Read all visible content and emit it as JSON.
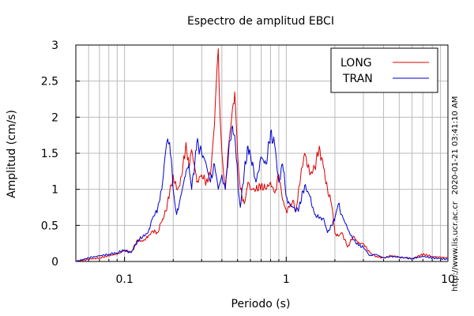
{
  "chart_data": {
    "type": "line",
    "title": "Espectro de amplitud EBCI",
    "xlabel": "Periodo (s)",
    "ylabel": "Amplitud (cm/s)",
    "xscale": "log",
    "xlim": [
      0.05,
      10
    ],
    "ylim": [
      0,
      3
    ],
    "x_tick_labels": [
      "0.1",
      "1",
      "10"
    ],
    "y_tick_labels": [
      "0",
      "0.5",
      "1",
      "1.5",
      "2",
      "2.5",
      "3"
    ],
    "grid": true,
    "legend_position": "top-right",
    "side_labels": [
      "2020-01-21 03:41:10 AM",
      "http://www.lis.ucr.ac.cr"
    ],
    "series": [
      {
        "name": "LONG",
        "color": "#dd0000",
        "x": [
          0.05,
          0.06,
          0.07,
          0.08,
          0.09,
          0.1,
          0.11,
          0.12,
          0.13,
          0.14,
          0.15,
          0.16,
          0.17,
          0.18,
          0.19,
          0.2,
          0.21,
          0.22,
          0.23,
          0.24,
          0.25,
          0.26,
          0.28,
          0.3,
          0.32,
          0.34,
          0.36,
          0.37,
          0.38,
          0.39,
          0.4,
          0.42,
          0.44,
          0.46,
          0.48,
          0.5,
          0.52,
          0.55,
          0.58,
          0.6,
          0.65,
          0.7,
          0.75,
          0.8,
          0.85,
          0.9,
          0.95,
          1.0,
          1.05,
          1.1,
          1.15,
          1.2,
          1.3,
          1.4,
          1.5,
          1.6,
          1.7,
          1.8,
          1.9,
          2.0,
          2.1,
          2.2,
          2.4,
          2.6,
          2.8,
          3.0,
          3.3,
          3.6,
          4.0,
          4.5,
          5.0,
          5.5,
          6.0,
          7.0,
          8.0,
          9.0,
          10.0
        ],
        "values": [
          0.0,
          0.03,
          0.05,
          0.08,
          0.1,
          0.15,
          0.13,
          0.3,
          0.28,
          0.35,
          0.42,
          0.4,
          0.55,
          0.7,
          0.95,
          1.2,
          1.0,
          1.05,
          1.35,
          1.65,
          1.3,
          1.55,
          1.1,
          1.2,
          1.1,
          1.2,
          1.9,
          2.5,
          2.95,
          2.0,
          1.5,
          1.0,
          1.6,
          2.0,
          2.35,
          1.5,
          1.0,
          0.8,
          1.1,
          1.0,
          1.0,
          1.05,
          1.0,
          1.1,
          0.95,
          1.2,
          0.85,
          0.7,
          0.75,
          0.85,
          0.7,
          1.05,
          1.5,
          1.2,
          1.3,
          1.6,
          1.3,
          1.0,
          0.8,
          0.4,
          0.35,
          0.4,
          0.2,
          0.35,
          0.25,
          0.25,
          0.12,
          0.07,
          0.05,
          0.08,
          0.06,
          0.05,
          0.04,
          0.1,
          0.07,
          0.06,
          0.05
        ]
      },
      {
        "name": "TRAN",
        "color": "#0000cc",
        "x": [
          0.05,
          0.06,
          0.07,
          0.08,
          0.09,
          0.1,
          0.11,
          0.12,
          0.13,
          0.14,
          0.15,
          0.16,
          0.17,
          0.18,
          0.185,
          0.19,
          0.2,
          0.21,
          0.22,
          0.23,
          0.24,
          0.25,
          0.26,
          0.28,
          0.3,
          0.32,
          0.34,
          0.36,
          0.38,
          0.4,
          0.42,
          0.44,
          0.46,
          0.48,
          0.5,
          0.52,
          0.55,
          0.58,
          0.6,
          0.65,
          0.7,
          0.75,
          0.8,
          0.85,
          0.9,
          0.95,
          1.0,
          1.05,
          1.1,
          1.15,
          1.2,
          1.3,
          1.4,
          1.5,
          1.6,
          1.7,
          1.8,
          1.9,
          2.0,
          2.1,
          2.2,
          2.4,
          2.6,
          2.8,
          3.0,
          3.3,
          3.6,
          4.0,
          4.5,
          5.0,
          5.5,
          6.0,
          7.0,
          8.0,
          9.0,
          10.0
        ],
        "values": [
          0.0,
          0.05,
          0.08,
          0.1,
          0.12,
          0.16,
          0.12,
          0.28,
          0.35,
          0.4,
          0.62,
          0.72,
          1.0,
          1.55,
          1.7,
          1.65,
          1.0,
          0.65,
          0.85,
          1.05,
          1.25,
          1.35,
          1.0,
          1.65,
          1.5,
          1.35,
          1.1,
          1.35,
          1.0,
          1.2,
          1.0,
          1.5,
          1.85,
          1.75,
          1.2,
          0.75,
          1.25,
          1.6,
          1.5,
          1.1,
          1.45,
          1.35,
          1.8,
          1.6,
          1.1,
          1.35,
          0.9,
          0.8,
          0.75,
          0.7,
          0.75,
          1.05,
          0.9,
          0.65,
          0.6,
          0.6,
          0.4,
          0.5,
          0.6,
          0.8,
          0.65,
          0.45,
          0.3,
          0.22,
          0.2,
          0.08,
          0.1,
          0.05,
          0.07,
          0.06,
          0.05,
          0.04,
          0.07,
          0.05,
          0.04,
          0.03
        ]
      }
    ]
  }
}
